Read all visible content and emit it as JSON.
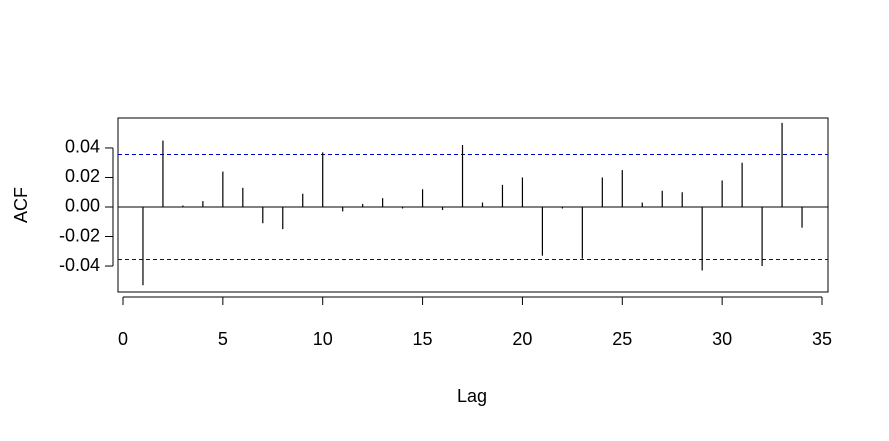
{
  "chart_data": {
    "type": "stem",
    "x_label": "Lag",
    "y_label": "ACF",
    "x": [
      1,
      2,
      3,
      4,
      5,
      6,
      7,
      8,
      9,
      10,
      11,
      12,
      13,
      14,
      15,
      16,
      17,
      18,
      19,
      20,
      21,
      22,
      23,
      24,
      25,
      26,
      27,
      28,
      29,
      30,
      31,
      32,
      33,
      34
    ],
    "values": [
      -0.053,
      0.045,
      0.001,
      0.004,
      0.024,
      0.013,
      -0.011,
      -0.015,
      0.009,
      0.037,
      -0.003,
      0.002,
      0.006,
      -0.001,
      0.012,
      -0.002,
      0.042,
      0.003,
      0.015,
      0.02,
      -0.033,
      -0.001,
      -0.035,
      0.02,
      0.025,
      0.003,
      0.011,
      0.01,
      -0.043,
      0.018,
      0.03,
      -0.04,
      0.057,
      -0.014
    ],
    "color": "#000000",
    "ci": 0.0356,
    "ci_color": "#0000cc",
    "xlim": [
      -0.25,
      35.3
    ],
    "xticks": [
      0,
      5,
      10,
      15,
      20,
      25,
      30,
      35
    ],
    "ylim": [
      -0.0576,
      0.0603
    ],
    "yticks": [
      -0.04,
      -0.02,
      {
        "value": 0,
        "label": "0.00"
      },
      0.02,
      0.04
    ]
  }
}
